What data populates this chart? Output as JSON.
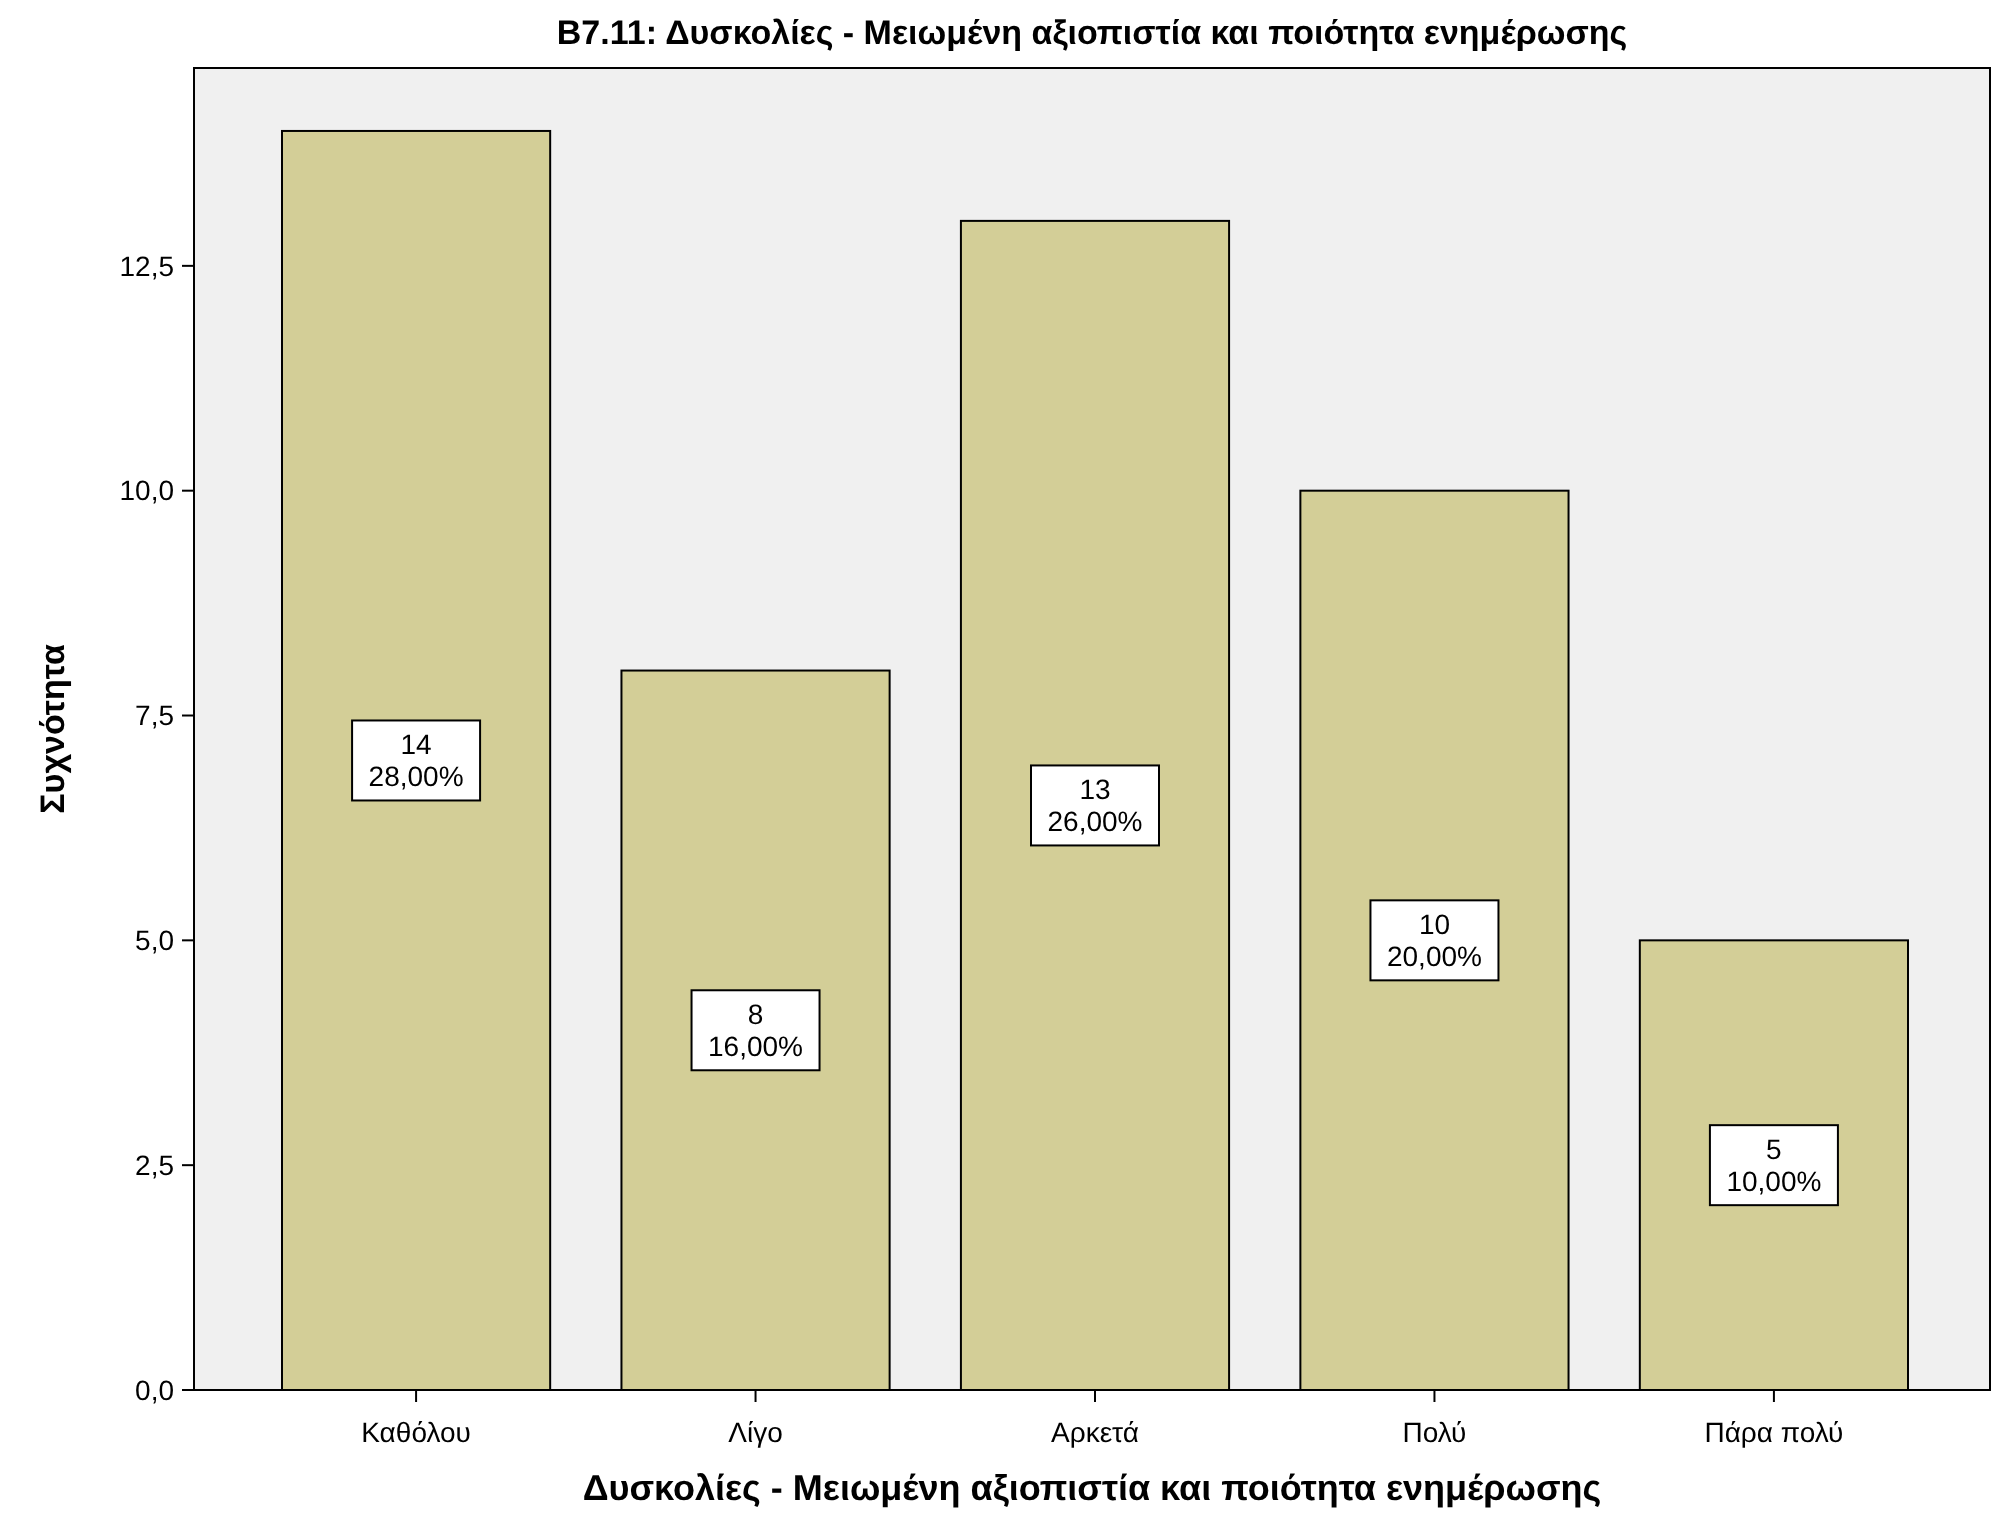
{
  "chart_data": {
    "type": "bar",
    "title": "Β7.11: Δυσκολίες - Μειωμένη αξιοπιστία και ποιότητα ενημέρωσης",
    "xlabel": "Δυσκολίες - Μειωμένη αξιοπιστία και ποιότητα ενημέρωσης",
    "ylabel": "Συχνότητα",
    "categories": [
      "Καθόλου",
      "Λίγο",
      "Αρκετά",
      "Πολύ",
      "Πάρα πολύ"
    ],
    "values": [
      14,
      8,
      13,
      10,
      5
    ],
    "value_labels": [
      "14\n28,00%",
      "8\n16,00%",
      "13\n26,00%",
      "10\n20,00%",
      "5\n10,00%"
    ],
    "color": "#d3ce97",
    "ylim": [
      0,
      14.7
    ],
    "yticks": [
      {
        "value": 0,
        "label": "0,0"
      },
      {
        "value": 2.5,
        "label": "2,5"
      },
      {
        "value": 5,
        "label": "5,0"
      },
      {
        "value": 7.5,
        "label": "7,5"
      },
      {
        "value": 10,
        "label": "10,0"
      },
      {
        "value": 12.5,
        "label": "12,5"
      }
    ],
    "grid": false
  }
}
